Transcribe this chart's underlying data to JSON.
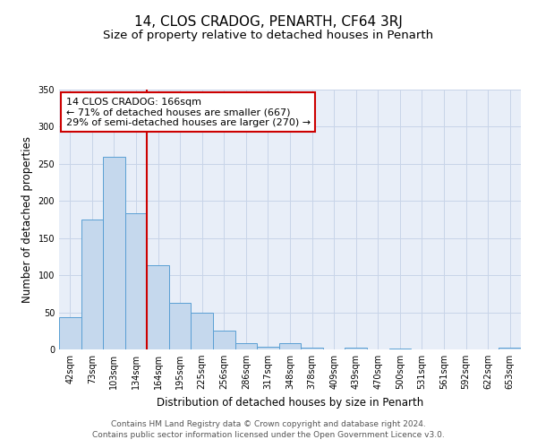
{
  "title": "14, CLOS CRADOG, PENARTH, CF64 3RJ",
  "subtitle": "Size of property relative to detached houses in Penarth",
  "xlabel": "Distribution of detached houses by size in Penarth",
  "ylabel": "Number of detached properties",
  "bin_labels": [
    "42sqm",
    "73sqm",
    "103sqm",
    "134sqm",
    "164sqm",
    "195sqm",
    "225sqm",
    "256sqm",
    "286sqm",
    "317sqm",
    "348sqm",
    "378sqm",
    "409sqm",
    "439sqm",
    "470sqm",
    "500sqm",
    "531sqm",
    "561sqm",
    "592sqm",
    "622sqm",
    "653sqm"
  ],
  "bar_heights": [
    43,
    175,
    260,
    184,
    113,
    63,
    50,
    25,
    8,
    4,
    9,
    2,
    0,
    2,
    0,
    1,
    0,
    0,
    0,
    0,
    2
  ],
  "bar_color": "#c5d8ed",
  "bar_edge_color": "#5a9fd4",
  "ylim": [
    0,
    350
  ],
  "yticks": [
    0,
    50,
    100,
    150,
    200,
    250,
    300,
    350
  ],
  "red_line_bin": 4,
  "annotation_title": "14 CLOS CRADOG: 166sqm",
  "annotation_line1": "← 71% of detached houses are smaller (667)",
  "annotation_line2": "29% of semi-detached houses are larger (270) →",
  "annotation_box_color": "#ffffff",
  "annotation_box_edge_color": "#cc0000",
  "red_line_color": "#cc0000",
  "footer1": "Contains HM Land Registry data © Crown copyright and database right 2024.",
  "footer2": "Contains public sector information licensed under the Open Government Licence v3.0.",
  "background_color": "#ffffff",
  "plot_bg_color": "#e8eef8",
  "grid_color": "#c8d4e8",
  "title_fontsize": 11,
  "subtitle_fontsize": 9.5,
  "label_fontsize": 8.5,
  "tick_fontsize": 7,
  "annotation_fontsize": 8,
  "footer_fontsize": 6.5
}
